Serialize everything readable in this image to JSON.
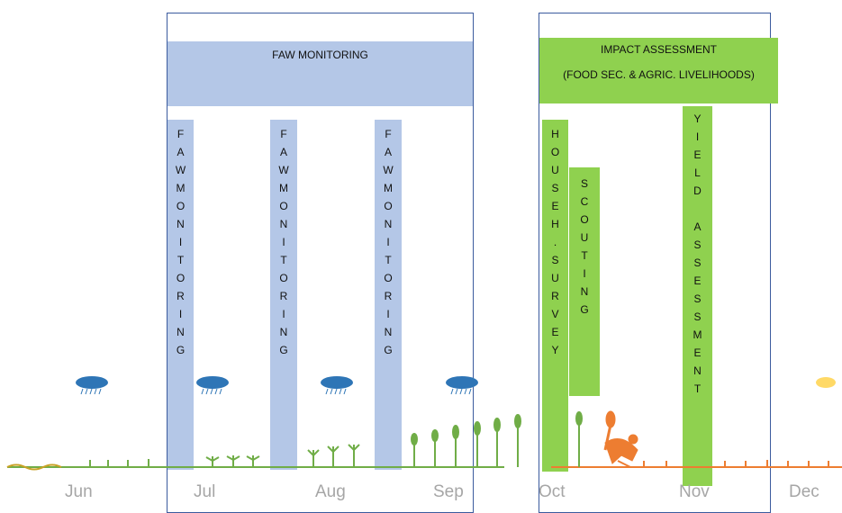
{
  "banners": {
    "faw_monitoring": "FAW MONITORING",
    "impact_title": "IMPACT ASSESSMENT",
    "impact_subtitle": "(FOOD SEC. & AGRIC. LIVELIHOODS)"
  },
  "vertical_bars": {
    "faw_1": [
      "F",
      "A",
      "W",
      "M",
      "O",
      "N",
      "I",
      "T",
      "O",
      "R",
      "I",
      "N",
      "G"
    ],
    "faw_2": [
      "F",
      "A",
      "W",
      "M",
      "O",
      "N",
      "I",
      "T",
      "O",
      "R",
      "I",
      "N",
      "G"
    ],
    "faw_3": [
      "F",
      "A",
      "W",
      "M",
      "O",
      "N",
      "I",
      "T",
      "O",
      "R",
      "I",
      "N",
      "G"
    ],
    "household_survey": [
      "H",
      "O",
      "U",
      "S",
      "E",
      "H",
      ".",
      "S",
      "U",
      "R",
      "V",
      "E",
      "Y"
    ],
    "scouting": [
      "S",
      "C",
      "O",
      "U",
      "T",
      "I",
      "N",
      "G"
    ],
    "yield_assessment": [
      "Y",
      "I",
      "E",
      "L",
      "D",
      "",
      "A",
      "S",
      "S",
      "E",
      "S",
      "S",
      "M",
      "E",
      "N",
      "T"
    ]
  },
  "months": [
    "Jun",
    "Jul",
    "Aug",
    "Sep",
    "Oct",
    "Nov",
    "Dec"
  ],
  "colors": {
    "frame": "#3b5b9e",
    "blue_fill": "#b4c7e7",
    "green_fill": "#8fd14f",
    "crop_green": "#70ad47",
    "harvest_orange": "#ed7d31",
    "rain_cloud": "#2e75b6",
    "sun": "#ffd966"
  }
}
